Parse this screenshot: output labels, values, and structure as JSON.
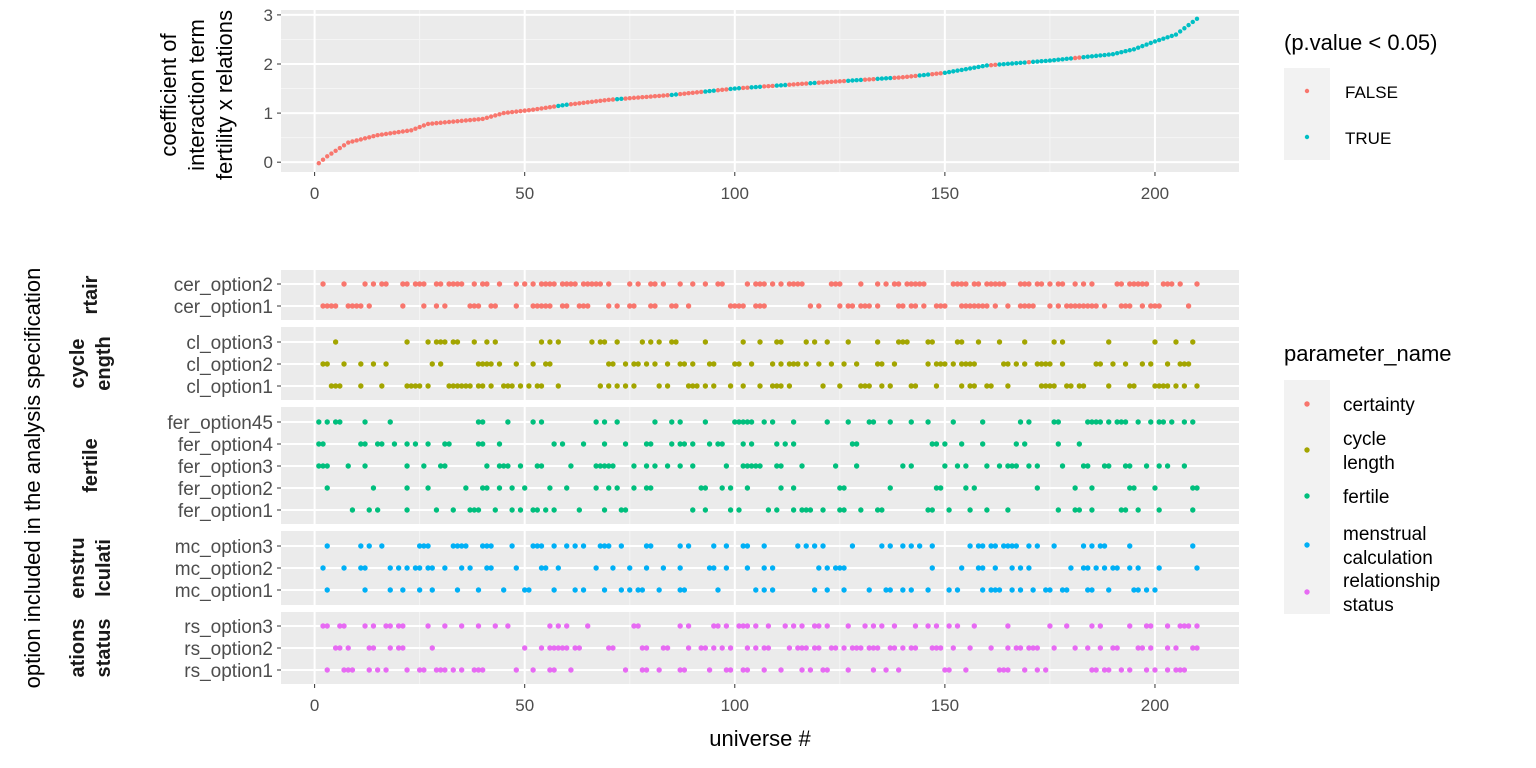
{
  "chart_data": [
    {
      "type": "scatter",
      "ylabel_lines": [
        "coefficient of",
        "interaction term",
        "fertility x relations"
      ],
      "x_ticks": [
        "0",
        "50",
        "100",
        "150",
        "200"
      ],
      "y_ticks": [
        "0",
        "1",
        "2",
        "3"
      ],
      "xlim": [
        -8,
        220
      ],
      "ylim": [
        -0.2,
        3.1
      ],
      "legend_title": "(p.value < 0.05)",
      "legend_position": "right",
      "grid": true,
      "series": [
        {
          "name": "FALSE",
          "color": "#F8766D"
        },
        {
          "name": "TRUE",
          "color": "#00BFC4"
        }
      ],
      "curve": {
        "x": [
          1,
          3,
          8,
          15,
          23,
          27,
          40,
          45,
          52,
          60,
          70,
          85,
          100,
          120,
          140,
          150,
          160,
          175,
          190,
          195,
          200,
          205,
          210
        ],
        "y": [
          -0.02,
          0.12,
          0.4,
          0.55,
          0.65,
          0.78,
          0.88,
          1.0,
          1.07,
          1.17,
          1.27,
          1.37,
          1.5,
          1.62,
          1.73,
          1.82,
          1.97,
          2.07,
          2.2,
          2.3,
          2.46,
          2.6,
          2.92
        ]
      },
      "true_ranges": [
        [
          58,
          60
        ],
        [
          72,
          73
        ],
        [
          85,
          86
        ],
        [
          93,
          95
        ],
        [
          99,
          101
        ],
        [
          104,
          106
        ],
        [
          110,
          112
        ],
        [
          118,
          119
        ],
        [
          127,
          130
        ],
        [
          134,
          137
        ],
        [
          144,
          146
        ],
        [
          150,
          160
        ],
        [
          163,
          169
        ],
        [
          171,
          180
        ],
        [
          183,
          210
        ]
      ]
    },
    {
      "type": "scatter",
      "xlabel": "universe #",
      "ylabel": "option included in the analysis specification",
      "x_ticks": [
        "0",
        "50",
        "100",
        "150",
        "200"
      ],
      "xlim": [
        -8,
        220
      ],
      "legend_title": "parameter_name",
      "legend_position": "right",
      "legend": [
        {
          "lines": [
            "certainty"
          ],
          "color": "#F8766D"
        },
        {
          "lines": [
            "cycle",
            "length"
          ],
          "color": "#A3A500"
        },
        {
          "lines": [
            "fertile"
          ],
          "color": "#00BF7D"
        },
        {
          "lines": [
            "menstrual",
            "calculation"
          ],
          "color": "#00B0F6"
        },
        {
          "lines": [
            "relationship",
            "status"
          ],
          "color": "#E76BF3"
        }
      ],
      "panels": [
        {
          "strip_lines": [
            "rtair"
          ],
          "color": "#F8766D",
          "options": [
            "cer_option2",
            "cer_option1"
          ]
        },
        {
          "strip_lines": [
            "cycle",
            "ength"
          ],
          "color": "#A3A500",
          "options": [
            "cl_option3",
            "cl_option2",
            "cl_option1"
          ]
        },
        {
          "strip_lines": [
            "fertile"
          ],
          "color": "#00BF7D",
          "options": [
            "fer_option45",
            "fer_option4",
            "fer_option3",
            "fer_option2",
            "fer_option1"
          ]
        },
        {
          "strip_lines": [
            "enstru",
            "lculati"
          ],
          "color": "#00B0F6",
          "options": [
            "mc_option3",
            "mc_option2",
            "mc_option1"
          ]
        },
        {
          "strip_lines": [
            "ations",
            "status"
          ],
          "color": "#E76BF3",
          "options": [
            "rs_option3",
            "rs_option2",
            "rs_option1"
          ]
        }
      ]
    }
  ]
}
